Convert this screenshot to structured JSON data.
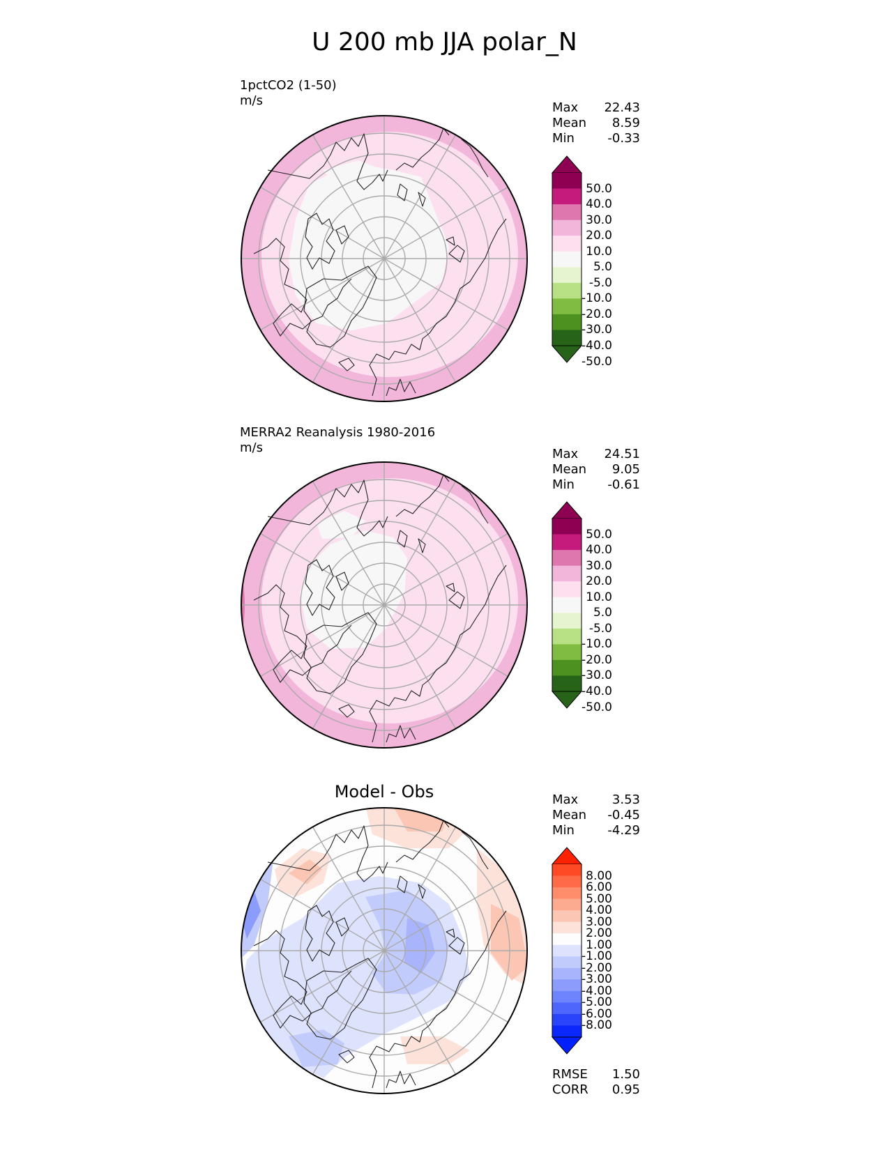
{
  "title": "U 200 mb JJA polar_N",
  "panels": [
    {
      "id": "model",
      "label_line1": "1pctCO2 (1-50)",
      "label_line2": "m/s",
      "stats": {
        "max_label": "Max",
        "max": "22.43",
        "mean_label": "Mean",
        "mean": "8.59",
        "min_label": "Min",
        "min": "-0.33"
      }
    },
    {
      "id": "obs",
      "label_line1": "MERRA2 Reanalysis 1980-2016",
      "label_line2": "m/s",
      "stats": {
        "max_label": "Max",
        "max": "24.51",
        "mean_label": "Mean",
        "mean": "9.05",
        "min_label": "Min",
        "min": "-0.61"
      }
    },
    {
      "id": "diff",
      "title": "Model - Obs",
      "stats": {
        "max_label": "Max",
        "max": "3.53",
        "mean_label": "Mean",
        "mean": "-0.45",
        "min_label": "Min",
        "min": "-4.29"
      },
      "rmse_label": "RMSE",
      "rmse": "1.50",
      "corr_label": "CORR",
      "corr": "0.95"
    }
  ],
  "chart_data": [
    {
      "type": "heatmap",
      "projection": "north polar stereographic",
      "title": "1pctCO2 (1-50)",
      "units": "m/s",
      "colorbar": {
        "levels": [
          "50.0",
          "40.0",
          "30.0",
          "20.0",
          "10.0",
          "5.0",
          "-5.0",
          "-10.0",
          "-20.0",
          "-30.0",
          "-40.0",
          "-50.0"
        ],
        "colors": [
          "#8e0152",
          "#c51b7d",
          "#de77ae",
          "#f1b6da",
          "#fde0ef",
          "#f7f7f7",
          "#e6f5d0",
          "#b8e186",
          "#7fbc41",
          "#4d9221",
          "#276419"
        ],
        "over_color": "#8e0152",
        "under_color": "#276419"
      },
      "field": {
        "pole_value": 0,
        "mid_value": 8,
        "rim_value": 12,
        "max_value": 22.43
      }
    },
    {
      "type": "heatmap",
      "projection": "north polar stereographic",
      "title": "MERRA2 Reanalysis 1980-2016",
      "units": "m/s",
      "colorbar": {
        "levels": [
          "50.0",
          "40.0",
          "30.0",
          "20.0",
          "10.0",
          "5.0",
          "-5.0",
          "-10.0",
          "-20.0",
          "-30.0",
          "-40.0",
          "-50.0"
        ],
        "colors": [
          "#8e0152",
          "#c51b7d",
          "#de77ae",
          "#f1b6da",
          "#fde0ef",
          "#f7f7f7",
          "#e6f5d0",
          "#b8e186",
          "#7fbc41",
          "#4d9221",
          "#276419"
        ],
        "over_color": "#8e0152",
        "under_color": "#276419"
      },
      "field": {
        "pole_value": 0,
        "mid_value": 8,
        "rim_value": 14,
        "max_value": 24.51
      }
    },
    {
      "type": "heatmap",
      "projection": "north polar stereographic",
      "title": "Model - Obs",
      "units": "m/s",
      "colorbar": {
        "levels": [
          "8.00",
          "6.00",
          "5.00",
          "4.00",
          "3.00",
          "2.00",
          "1.00",
          "-1.00",
          "-2.00",
          "-3.00",
          "-4.00",
          "-5.00",
          "-6.00",
          "-8.00"
        ],
        "colors": [
          "#ff4a26",
          "#ff6a48",
          "#ff8c6a",
          "#fcaa90",
          "#fcc6b4",
          "#fde2da",
          "#fdfdfd",
          "#dde2fd",
          "#c2ccfc",
          "#a8b4fc",
          "#8b9cfc",
          "#6e84fc",
          "#4f66fc",
          "#2a44fc",
          "#0a28fc"
        ],
        "over_color": "#ff2200",
        "under_color": "#0020ff"
      },
      "field": {
        "max_value": 3.53,
        "min_value": -4.29,
        "mean_value": -0.45
      }
    }
  ]
}
